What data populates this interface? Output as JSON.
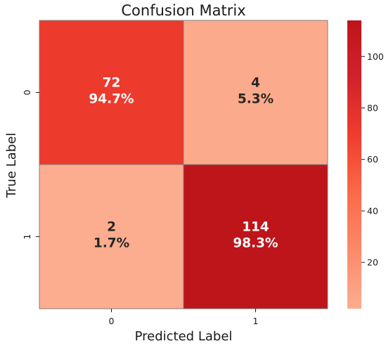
{
  "chart_data": {
    "type": "heatmap",
    "title": "Confusion Matrix",
    "xlabel": "Predicted Label",
    "ylabel": "True Label",
    "x_categories": [
      "0",
      "1"
    ],
    "y_categories": [
      "0",
      "1"
    ],
    "values": [
      [
        72,
        4
      ],
      [
        2,
        114
      ]
    ],
    "percent_labels": [
      [
        "94.7%",
        "5.3%"
      ],
      [
        "1.7%",
        "98.3%"
      ]
    ],
    "colormap": "Reds",
    "colorbar": {
      "range": [
        2,
        114
      ],
      "ticks": [
        20,
        40,
        60,
        80,
        100
      ],
      "tick_labels": [
        "20",
        "40",
        "60",
        "80",
        "100"
      ],
      "colors": [
        "#fcad8f",
        "#fc8a6a",
        "#fb6a4a",
        "#f03d2d",
        "#d2222c",
        "#bd151a"
      ]
    },
    "grid": true,
    "legend": "none"
  }
}
